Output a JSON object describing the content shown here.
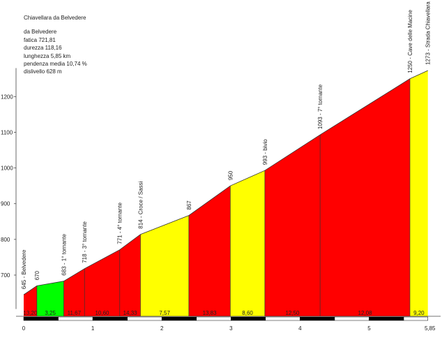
{
  "info": {
    "title": "Chiavellara da Belvedere",
    "start": "da Belvedere",
    "fatica": "fatica 721,81",
    "durezza": "durezza 118,16",
    "lunghezza": "lunghezza 5,85 km",
    "pendenza": "pendenza media 10,74 %",
    "dislivello": "dislivello 628 m"
  },
  "colors": {
    "red": "#ff0000",
    "yellow": "#ffff00",
    "green": "#00ff00",
    "axis": "#444444"
  },
  "chart_data": {
    "type": "area",
    "xlim": [
      0,
      5.85
    ],
    "ylim": [
      605,
      1280
    ],
    "x_ticks": [
      0,
      1,
      2,
      3,
      4,
      5
    ],
    "x_end_label": "5,85",
    "y_ticks": [
      700,
      800,
      900,
      1000,
      1100,
      1200
    ],
    "points": [
      {
        "x": 0.0,
        "y": 645,
        "label": "645 - Belvedere"
      },
      {
        "x": 0.19,
        "y": 670,
        "label": "670"
      },
      {
        "x": 0.58,
        "y": 683,
        "label": "683 - 1° tornante"
      },
      {
        "x": 0.88,
        "y": 718,
        "label": "718 - 3° tornante"
      },
      {
        "x": 1.39,
        "y": 771,
        "label": "771 - 4° tornante"
      },
      {
        "x": 1.69,
        "y": 814,
        "label": "814 - Croce / Sassi"
      },
      {
        "x": 2.39,
        "y": 867,
        "label": "867"
      },
      {
        "x": 2.99,
        "y": 950,
        "label": "950"
      },
      {
        "x": 3.49,
        "y": 993,
        "label": "993 - bivio"
      },
      {
        "x": 4.29,
        "y": 1093,
        "label": "1093 - 7° tornante"
      },
      {
        "x": 5.59,
        "y": 1250,
        "label": "1250 - Cave delle Macine"
      },
      {
        "x": 5.85,
        "y": 1273,
        "label": "1273 - Strada Chiavellara C"
      }
    ],
    "segments": [
      {
        "from": 0.0,
        "to": 0.19,
        "slope": "13,20",
        "color": "red"
      },
      {
        "from": 0.19,
        "to": 0.58,
        "slope": "3,25",
        "color": "green"
      },
      {
        "from": 0.58,
        "to": 0.88,
        "slope": "11,67",
        "color": "red"
      },
      {
        "from": 0.88,
        "to": 1.39,
        "slope": "10,60",
        "color": "red"
      },
      {
        "from": 1.39,
        "to": 1.69,
        "slope": "14,33",
        "color": "red"
      },
      {
        "from": 1.69,
        "to": 2.39,
        "slope": "7,57",
        "color": "yellow"
      },
      {
        "from": 2.39,
        "to": 2.99,
        "slope": "13,83",
        "color": "red"
      },
      {
        "from": 2.99,
        "to": 3.49,
        "slope": "8,60",
        "color": "yellow"
      },
      {
        "from": 3.49,
        "to": 4.29,
        "slope": "12,50",
        "color": "red"
      },
      {
        "from": 4.29,
        "to": 5.59,
        "slope": "12,08",
        "color": "red"
      },
      {
        "from": 5.59,
        "to": 5.85,
        "slope": "9,20",
        "color": "yellow"
      }
    ]
  }
}
